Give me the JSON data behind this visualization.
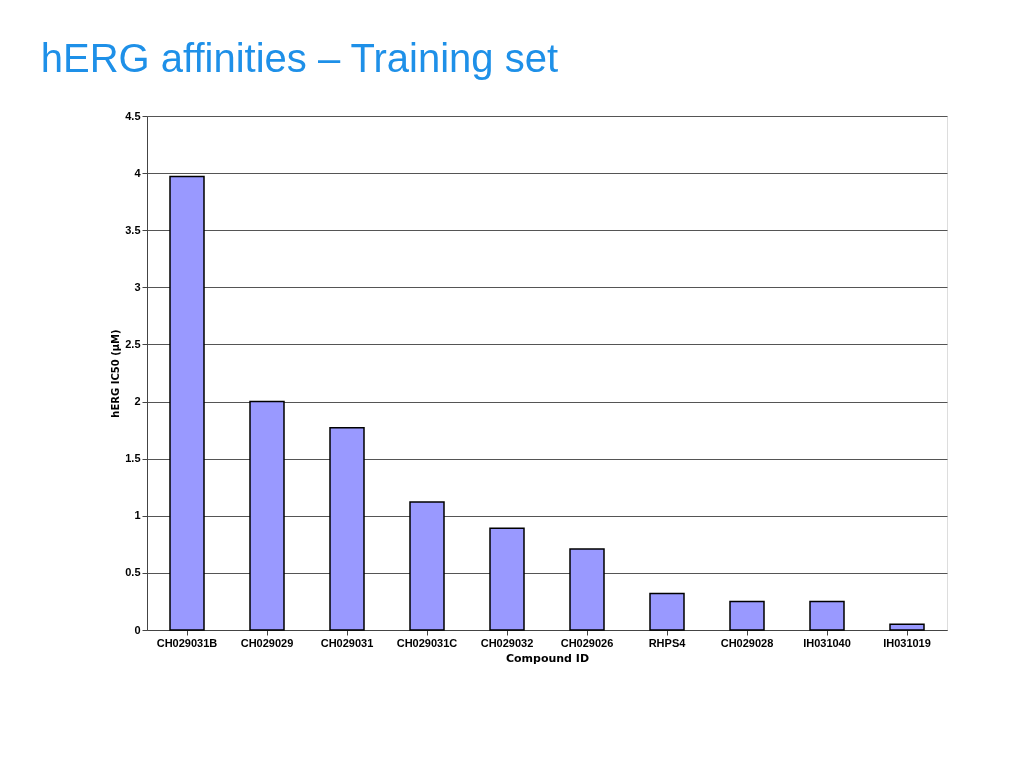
{
  "chart_data": {
    "type": "bar",
    "title": "hERG affinities – Training set",
    "xlabel": "Compound ID",
    "ylabel": "hERG IC50 (μM)",
    "categories": [
      "CH029031B",
      "CH029029",
      "CH029031",
      "CH029031C",
      "CH029032",
      "CH029026",
      "RHPS4",
      "CH029028",
      "IH031040",
      "IH031019"
    ],
    "values": [
      3.97,
      2.0,
      1.77,
      1.12,
      0.89,
      0.71,
      0.32,
      0.25,
      0.25,
      0.05
    ],
    "color": "#9999ff",
    "ylim": [
      0,
      4.5
    ],
    "yticks": [
      0,
      0.5,
      1,
      1.5,
      2,
      2.5,
      3,
      3.5,
      4,
      4.5
    ],
    "grid": "y"
  }
}
